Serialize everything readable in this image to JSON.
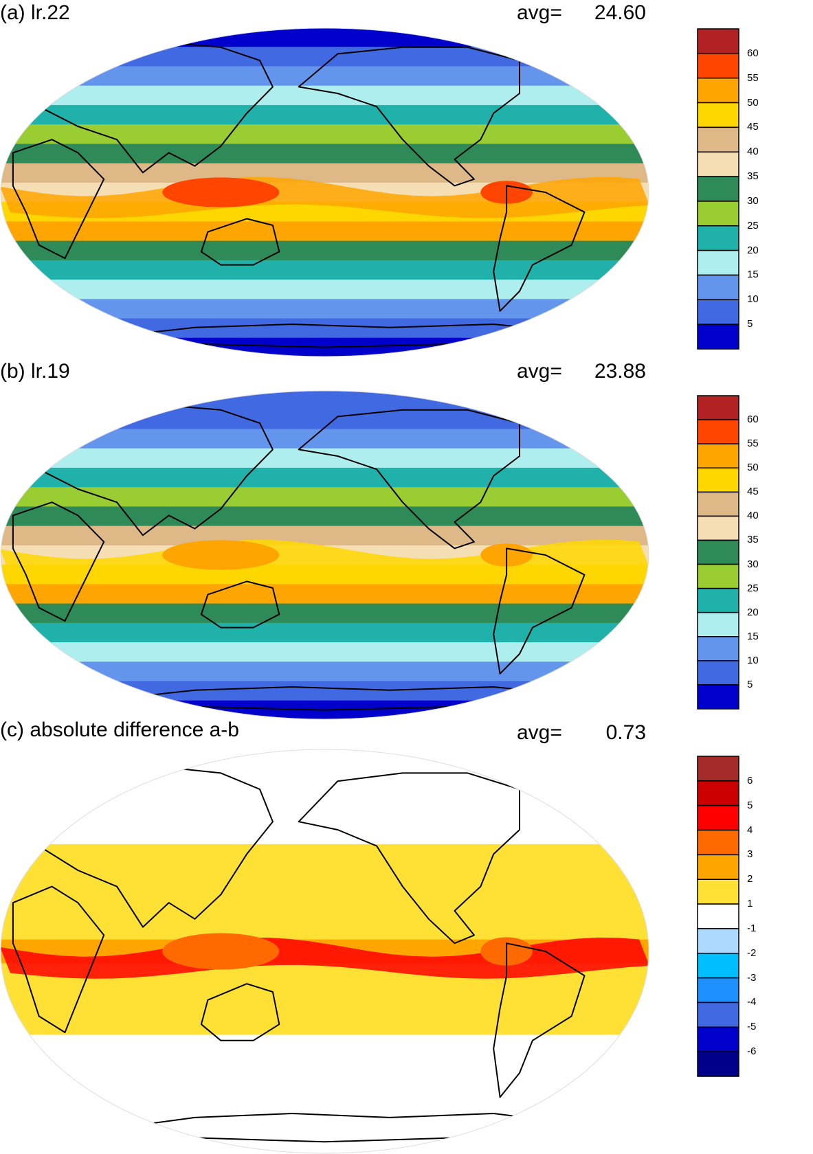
{
  "panels": [
    {
      "title": "(a) lr.22",
      "avg_label": "avg=",
      "avg_value": "24.60",
      "colorbar": {
        "labels": [
          "60",
          "55",
          "50",
          "45",
          "40",
          "35",
          "30",
          "25",
          "20",
          "15",
          "10",
          "5"
        ],
        "colors": [
          "#b22222",
          "#ff4500",
          "#ffa500",
          "#ffd700",
          "#deb887",
          "#f5deb3",
          "#2e8b57",
          "#9acd32",
          "#20b2aa",
          "#afeeee",
          "#6495ed",
          "#4169e1",
          "#0000cd"
        ]
      },
      "field": {
        "band_colors": [
          "#0000cd",
          "#4169e1",
          "#6495ed",
          "#afeeee",
          "#20b2aa",
          "#9acd32",
          "#2e8b57",
          "#deb887",
          "#f5deb3",
          "#ffd700",
          "#ffa500",
          "#2e8b57",
          "#20b2aa",
          "#afeeee",
          "#6495ed",
          "#4169e1",
          "#0000cd"
        ],
        "hotspot_colors": [
          "#ff4500",
          "#ffa500"
        ]
      }
    },
    {
      "title": "(b) lr.19",
      "avg_label": "avg=",
      "avg_value": "23.88",
      "colorbar": {
        "labels": [
          "60",
          "55",
          "50",
          "45",
          "40",
          "35",
          "30",
          "25",
          "20",
          "15",
          "10",
          "5"
        ],
        "colors": [
          "#b22222",
          "#ff4500",
          "#ffa500",
          "#ffd700",
          "#deb887",
          "#f5deb3",
          "#2e8b57",
          "#9acd32",
          "#20b2aa",
          "#afeeee",
          "#6495ed",
          "#4169e1",
          "#0000cd"
        ]
      },
      "field": {
        "band_colors": [
          "#4169e1",
          "#4169e1",
          "#6495ed",
          "#afeeee",
          "#20b2aa",
          "#9acd32",
          "#2e8b57",
          "#deb887",
          "#f5deb3",
          "#ffd700",
          "#ffa500",
          "#2e8b57",
          "#20b2aa",
          "#afeeee",
          "#6495ed",
          "#4169e1",
          "#0000cd"
        ],
        "hotspot_colors": [
          "#ffa500",
          "#ffd700"
        ]
      }
    },
    {
      "title": "(c) absolute difference a-b",
      "avg_label": "avg=",
      "avg_value": "0.73",
      "colorbar": {
        "labels": [
          "6",
          "5",
          "4",
          "3",
          "2",
          "1",
          "-1",
          "-2",
          "-3",
          "-4",
          "-5",
          "-6"
        ],
        "colors": [
          "#a52a2a",
          "#cd0000",
          "#ff0000",
          "#ff6a00",
          "#ffa500",
          "#ffe135",
          "#ffffff",
          "#add8ff",
          "#00bfff",
          "#1e90ff",
          "#4169e1",
          "#0000cd",
          "#00008b"
        ]
      },
      "field": {
        "band_colors": [
          "#ffffff",
          "#ffffff",
          "#ffffff",
          "#ffffff",
          "#ffe135",
          "#ffe135",
          "#ffe135",
          "#ffe135",
          "#ffa500",
          "#ffe135",
          "#ffe135",
          "#ffe135",
          "#ffffff",
          "#ffffff",
          "#ffffff",
          "#ffffff",
          "#ffffff"
        ],
        "hotspot_colors": [
          "#ff6a00",
          "#ff0000"
        ]
      }
    }
  ],
  "colors": {
    "coastline": "#000000",
    "frame": "#000000",
    "map_edge": "#dddddd"
  }
}
